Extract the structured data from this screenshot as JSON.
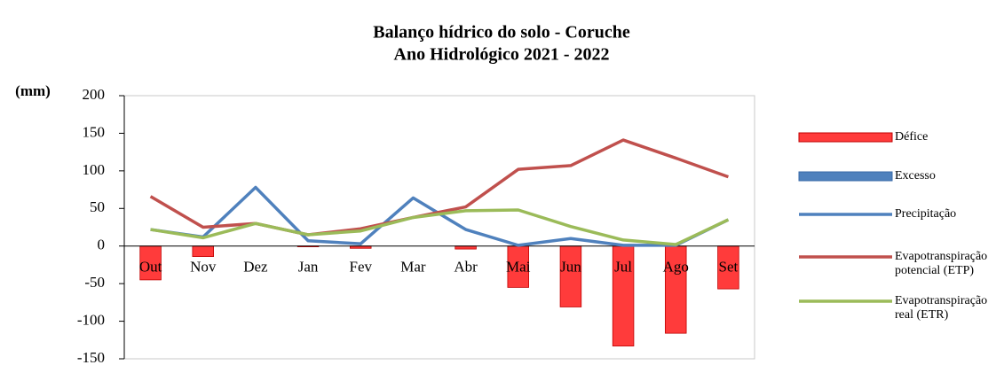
{
  "chart_data": {
    "type": "combo",
    "title": "Balanço hídrico do solo - Coruche",
    "subtitle": "Ano Hidrológico 2021 - 2022",
    "y_label": "(mm)",
    "categories": [
      "Out",
      "Nov",
      "Dez",
      "Jan",
      "Fev",
      "Mar",
      "Abr",
      "Mai",
      "Jun",
      "Jul",
      "Ago",
      "Set"
    ],
    "ylim": [
      -150,
      200
    ],
    "yticks": [
      -150,
      -100,
      -50,
      0,
      50,
      100,
      150,
      200
    ],
    "grid": false,
    "legend": "right",
    "series": [
      {
        "name": "Défice",
        "type": "bar",
        "color": "#ff3b3b",
        "values": [
          -45,
          -14,
          0,
          -1,
          -3,
          0,
          -4,
          -55,
          -81,
          -133,
          -116,
          -57
        ]
      },
      {
        "name": "Excesso",
        "type": "bar",
        "color": "#4f81bd",
        "values": [
          0,
          0,
          0,
          0,
          0,
          0,
          0,
          0,
          0,
          0,
          0,
          0
        ]
      },
      {
        "name": "Precipitação",
        "type": "line",
        "color": "#4f81bd",
        "values": [
          22,
          12,
          78,
          7,
          3,
          64,
          22,
          1,
          10,
          1,
          1,
          35
        ]
      },
      {
        "name": "Evapotranspiração potencial (ETP)",
        "type": "line",
        "color": "#c0504d",
        "values": [
          66,
          25,
          30,
          15,
          23,
          38,
          52,
          102,
          107,
          141,
          117,
          92
        ]
      },
      {
        "name": "Evapotranspiração real (ETR)",
        "type": "line",
        "color": "#9bbb59",
        "values": [
          22,
          11,
          30,
          15,
          20,
          38,
          47,
          48,
          26,
          8,
          2,
          35
        ]
      }
    ]
  }
}
